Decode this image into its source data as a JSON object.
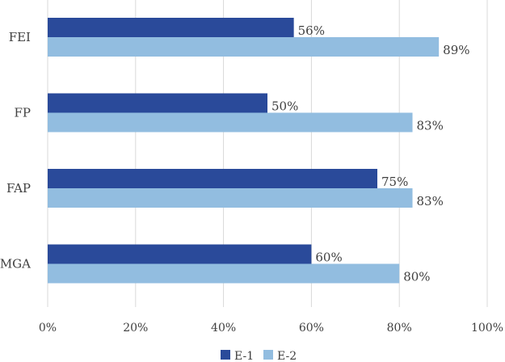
{
  "chart_data": {
    "type": "bar",
    "orientation": "horizontal",
    "categories": [
      "FEI",
      "FP",
      "FAP",
      "MGA"
    ],
    "series": [
      {
        "name": "E-1",
        "values": [
          56,
          50,
          75,
          60
        ],
        "color": "#2a4a9a"
      },
      {
        "name": "E-2",
        "values": [
          89,
          83,
          83,
          80
        ],
        "color": "#92bde0"
      }
    ],
    "data_labels": [
      [
        "56%",
        "50%",
        "75%",
        "60%"
      ],
      [
        "89%",
        "83%",
        "83%",
        "80%"
      ]
    ],
    "x_ticks": [
      "0%",
      "20%",
      "40%",
      "60%",
      "80%",
      "100%"
    ],
    "xlim": [
      0,
      100
    ],
    "grid": true,
    "legend_position": "bottom",
    "title": "",
    "xlabel": "",
    "ylabel": ""
  }
}
